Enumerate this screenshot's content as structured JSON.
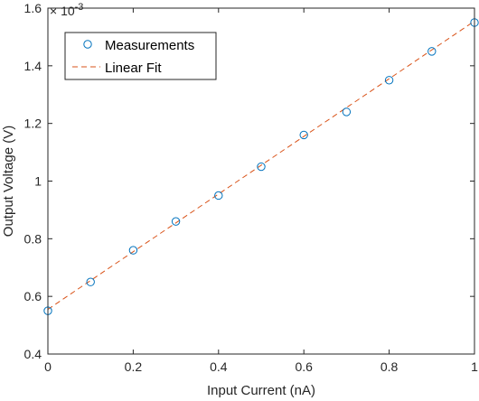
{
  "chart_data": {
    "type": "scatter",
    "xlabel": "Input Current (nA)",
    "ylabel": "Output Voltage (V)",
    "xlim": [
      0,
      1
    ],
    "ylim": [
      0.0004,
      0.0016
    ],
    "x_ticks": [
      0,
      0.2,
      0.4,
      0.6,
      0.8,
      1
    ],
    "x_tick_labels": [
      "0",
      "0.2",
      "0.4",
      "0.6",
      "0.8",
      "1"
    ],
    "y_ticks": [
      0.0004,
      0.0006,
      0.0008,
      0.001,
      0.0012,
      0.0014,
      0.0016
    ],
    "y_tick_labels": [
      "0.4",
      "0.6",
      "0.8",
      "1",
      "1.2",
      "1.4",
      "1.6"
    ],
    "y_exponent": {
      "base": "× 10",
      "power": "-3"
    },
    "legend_position": "top-left",
    "grid": false,
    "series": [
      {
        "name": "Measurements",
        "kind": "markers",
        "marker": "circle",
        "color": "#0072BD",
        "x": [
          0,
          0.1,
          0.2,
          0.3,
          0.4,
          0.5,
          0.6,
          0.7,
          0.8,
          0.9,
          1.0
        ],
        "y": [
          0.00055,
          0.00065,
          0.00076,
          0.00086,
          0.00095,
          0.00105,
          0.00116,
          0.00124,
          0.00135,
          0.00145,
          0.00155
        ]
      },
      {
        "name": "Linear Fit",
        "kind": "line",
        "style": "dashed",
        "color": "#D95319",
        "x": [
          0,
          1
        ],
        "y": [
          0.000555,
          0.001555
        ]
      }
    ]
  }
}
